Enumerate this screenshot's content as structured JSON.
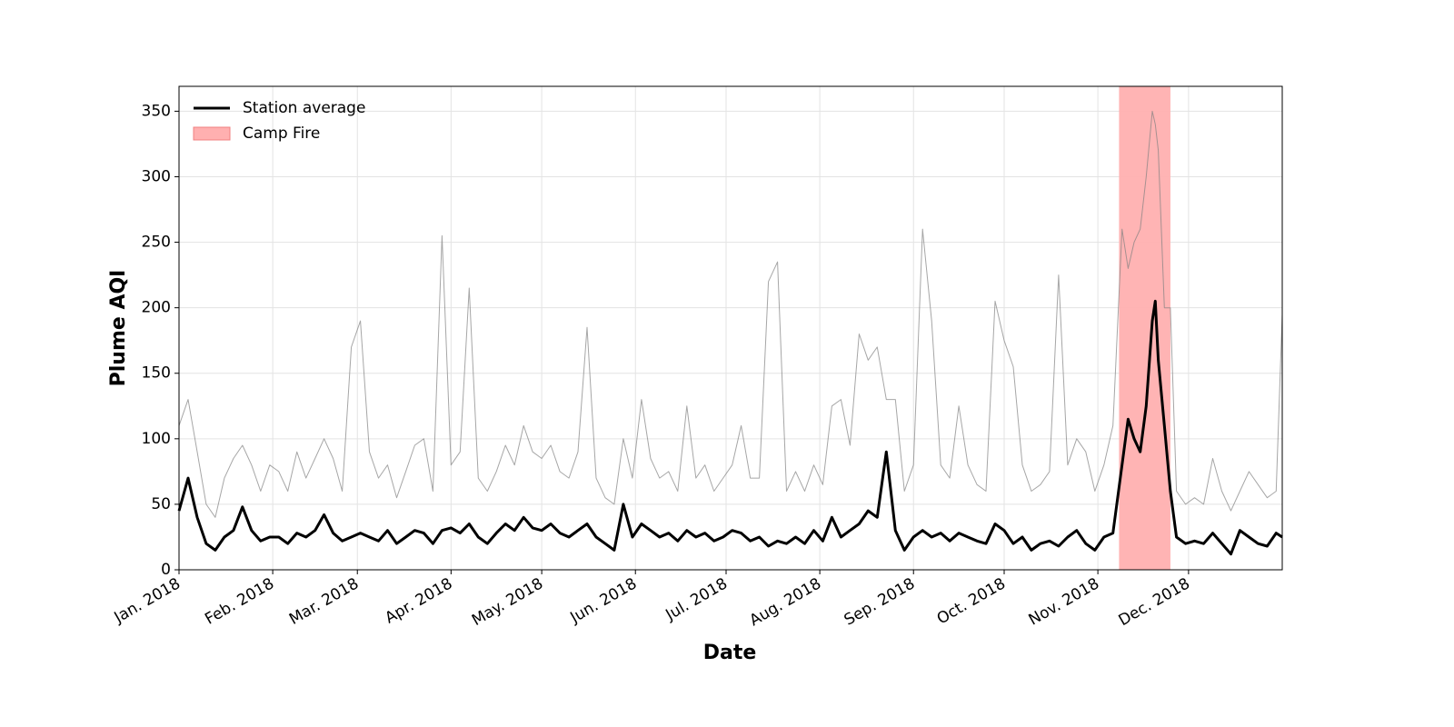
{
  "chart_data": {
    "type": "line",
    "xlabel": "Date",
    "ylabel": "Plume AQI",
    "xlim": [
      0,
      365
    ],
    "ylim": [
      0,
      369
    ],
    "xticks": [
      {
        "value": 0,
        "label": "Jan. 2018"
      },
      {
        "value": 31,
        "label": "Feb. 2018"
      },
      {
        "value": 59,
        "label": "Mar. 2018"
      },
      {
        "value": 90,
        "label": "Apr. 2018"
      },
      {
        "value": 120,
        "label": "May. 2018"
      },
      {
        "value": 151,
        "label": "Jun. 2018"
      },
      {
        "value": 181,
        "label": "Jul. 2018"
      },
      {
        "value": 212,
        "label": "Aug. 2018"
      },
      {
        "value": 243,
        "label": "Sep. 2018"
      },
      {
        "value": 273,
        "label": "Oct. 2018"
      },
      {
        "value": 304,
        "label": "Nov. 2018"
      },
      {
        "value": 334,
        "label": "Dec. 2018"
      }
    ],
    "yticks": [
      0,
      50,
      100,
      150,
      200,
      250,
      300,
      350
    ],
    "grid": true,
    "legend": "upper left",
    "shade": {
      "name": "Camp Fire",
      "color": "#ffb0b0",
      "x": [
        311,
        328
      ]
    },
    "x": [
      0,
      3,
      6,
      9,
      12,
      15,
      18,
      21,
      24,
      27,
      30,
      33,
      36,
      39,
      42,
      45,
      48,
      51,
      54,
      57,
      60,
      63,
      66,
      69,
      72,
      75,
      78,
      81,
      84,
      87,
      90,
      93,
      96,
      99,
      102,
      105,
      108,
      111,
      114,
      117,
      120,
      123,
      126,
      129,
      132,
      135,
      138,
      141,
      144,
      147,
      150,
      153,
      156,
      159,
      162,
      165,
      168,
      171,
      174,
      177,
      180,
      183,
      186,
      189,
      192,
      195,
      198,
      201,
      204,
      207,
      210,
      213,
      216,
      219,
      222,
      225,
      228,
      231,
      234,
      237,
      240,
      243,
      246,
      249,
      252,
      255,
      258,
      261,
      264,
      267,
      270,
      273,
      276,
      279,
      282,
      285,
      288,
      291,
      294,
      297,
      300,
      303,
      306,
      309,
      312,
      314,
      316,
      318,
      320,
      322,
      323,
      324,
      326,
      328,
      330,
      333,
      336,
      339,
      342,
      345,
      348,
      351,
      354,
      357,
      360,
      363,
      365
    ],
    "series": [
      {
        "color": "#808080",
        "values": [
          110,
          130,
          90,
          50,
          40,
          70,
          85,
          95,
          80,
          60,
          80,
          75,
          60,
          90,
          70,
          85,
          100,
          85,
          60,
          170,
          190,
          90,
          70,
          80,
          55,
          75,
          95,
          100,
          60,
          255,
          80,
          90,
          215,
          70,
          60,
          75,
          95,
          80,
          110,
          90,
          85,
          95,
          75,
          70,
          90,
          185,
          70,
          55,
          50,
          100,
          70,
          130,
          85,
          70,
          75,
          60,
          125,
          70,
          80,
          60,
          70,
          80,
          110,
          70,
          70,
          220,
          235,
          60,
          75,
          60,
          80,
          65,
          125,
          130,
          95,
          180,
          160,
          170,
          130,
          130,
          60,
          80,
          260,
          190,
          80,
          70,
          125,
          80,
          65,
          60,
          205,
          175,
          155,
          80,
          60,
          65,
          75,
          225,
          80,
          100,
          90,
          60,
          80,
          110,
          260,
          230,
          250,
          260,
          300,
          350,
          340,
          320,
          200,
          200,
          60,
          50,
          55,
          50,
          85,
          60,
          45,
          60,
          75,
          65,
          55,
          60,
          195
        ]
      },
      {
        "name": "Station average",
        "color": "#000000",
        "values": [
          45,
          70,
          40,
          20,
          15,
          25,
          30,
          48,
          30,
          22,
          25,
          25,
          20,
          28,
          25,
          30,
          42,
          28,
          22,
          25,
          28,
          25,
          22,
          30,
          20,
          25,
          30,
          28,
          20,
          30,
          32,
          28,
          35,
          25,
          20,
          28,
          35,
          30,
          40,
          32,
          30,
          35,
          28,
          25,
          30,
          35,
          25,
          20,
          15,
          50,
          25,
          35,
          30,
          25,
          28,
          22,
          30,
          25,
          28,
          22,
          25,
          30,
          28,
          22,
          25,
          18,
          22,
          20,
          25,
          20,
          30,
          22,
          40,
          25,
          30,
          35,
          45,
          40,
          90,
          30,
          15,
          25,
          30,
          25,
          28,
          22,
          28,
          25,
          22,
          20,
          35,
          30,
          20,
          25,
          15,
          20,
          22,
          18,
          25,
          30,
          20,
          15,
          25,
          28,
          80,
          115,
          100,
          90,
          125,
          190,
          205,
          160,
          110,
          60,
          25,
          20,
          22,
          20,
          28,
          20,
          12,
          30,
          25,
          20,
          18,
          28,
          25
        ]
      }
    ]
  }
}
